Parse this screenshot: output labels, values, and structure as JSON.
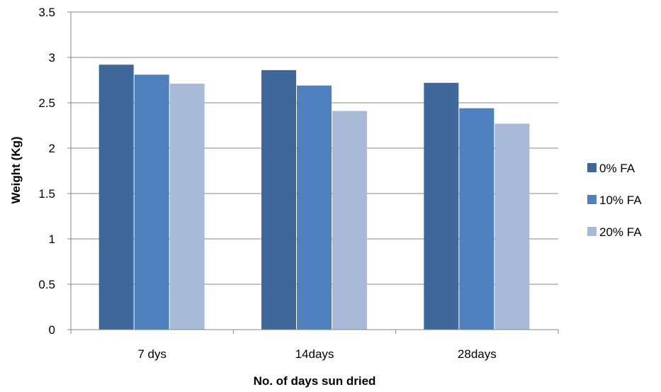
{
  "chart_data": {
    "type": "bar",
    "title": "",
    "xlabel": "No. of days sun dried",
    "ylabel": "Weight (Kg)",
    "categories": [
      "7 dys",
      "14days",
      "28days"
    ],
    "ylim": [
      0,
      3.5
    ],
    "yticks": [
      0,
      0.5,
      1,
      1.5,
      2,
      2.5,
      3,
      3.5
    ],
    "ytick_labels": [
      "0",
      "0.5",
      "1",
      "1.5",
      "2",
      "2.5",
      "3",
      "3.5"
    ],
    "grid": true,
    "legend_position": "right",
    "series": [
      {
        "name": "0% FA",
        "color": "#3F679A",
        "values": [
          2.92,
          2.86,
          2.72
        ]
      },
      {
        "name": "10% FA",
        "color": "#4E80BD",
        "values": [
          2.81,
          2.69,
          2.44
        ]
      },
      {
        "name": "20% FA",
        "color": "#A9B9D8",
        "values": [
          2.71,
          2.41,
          2.27
        ]
      }
    ]
  }
}
